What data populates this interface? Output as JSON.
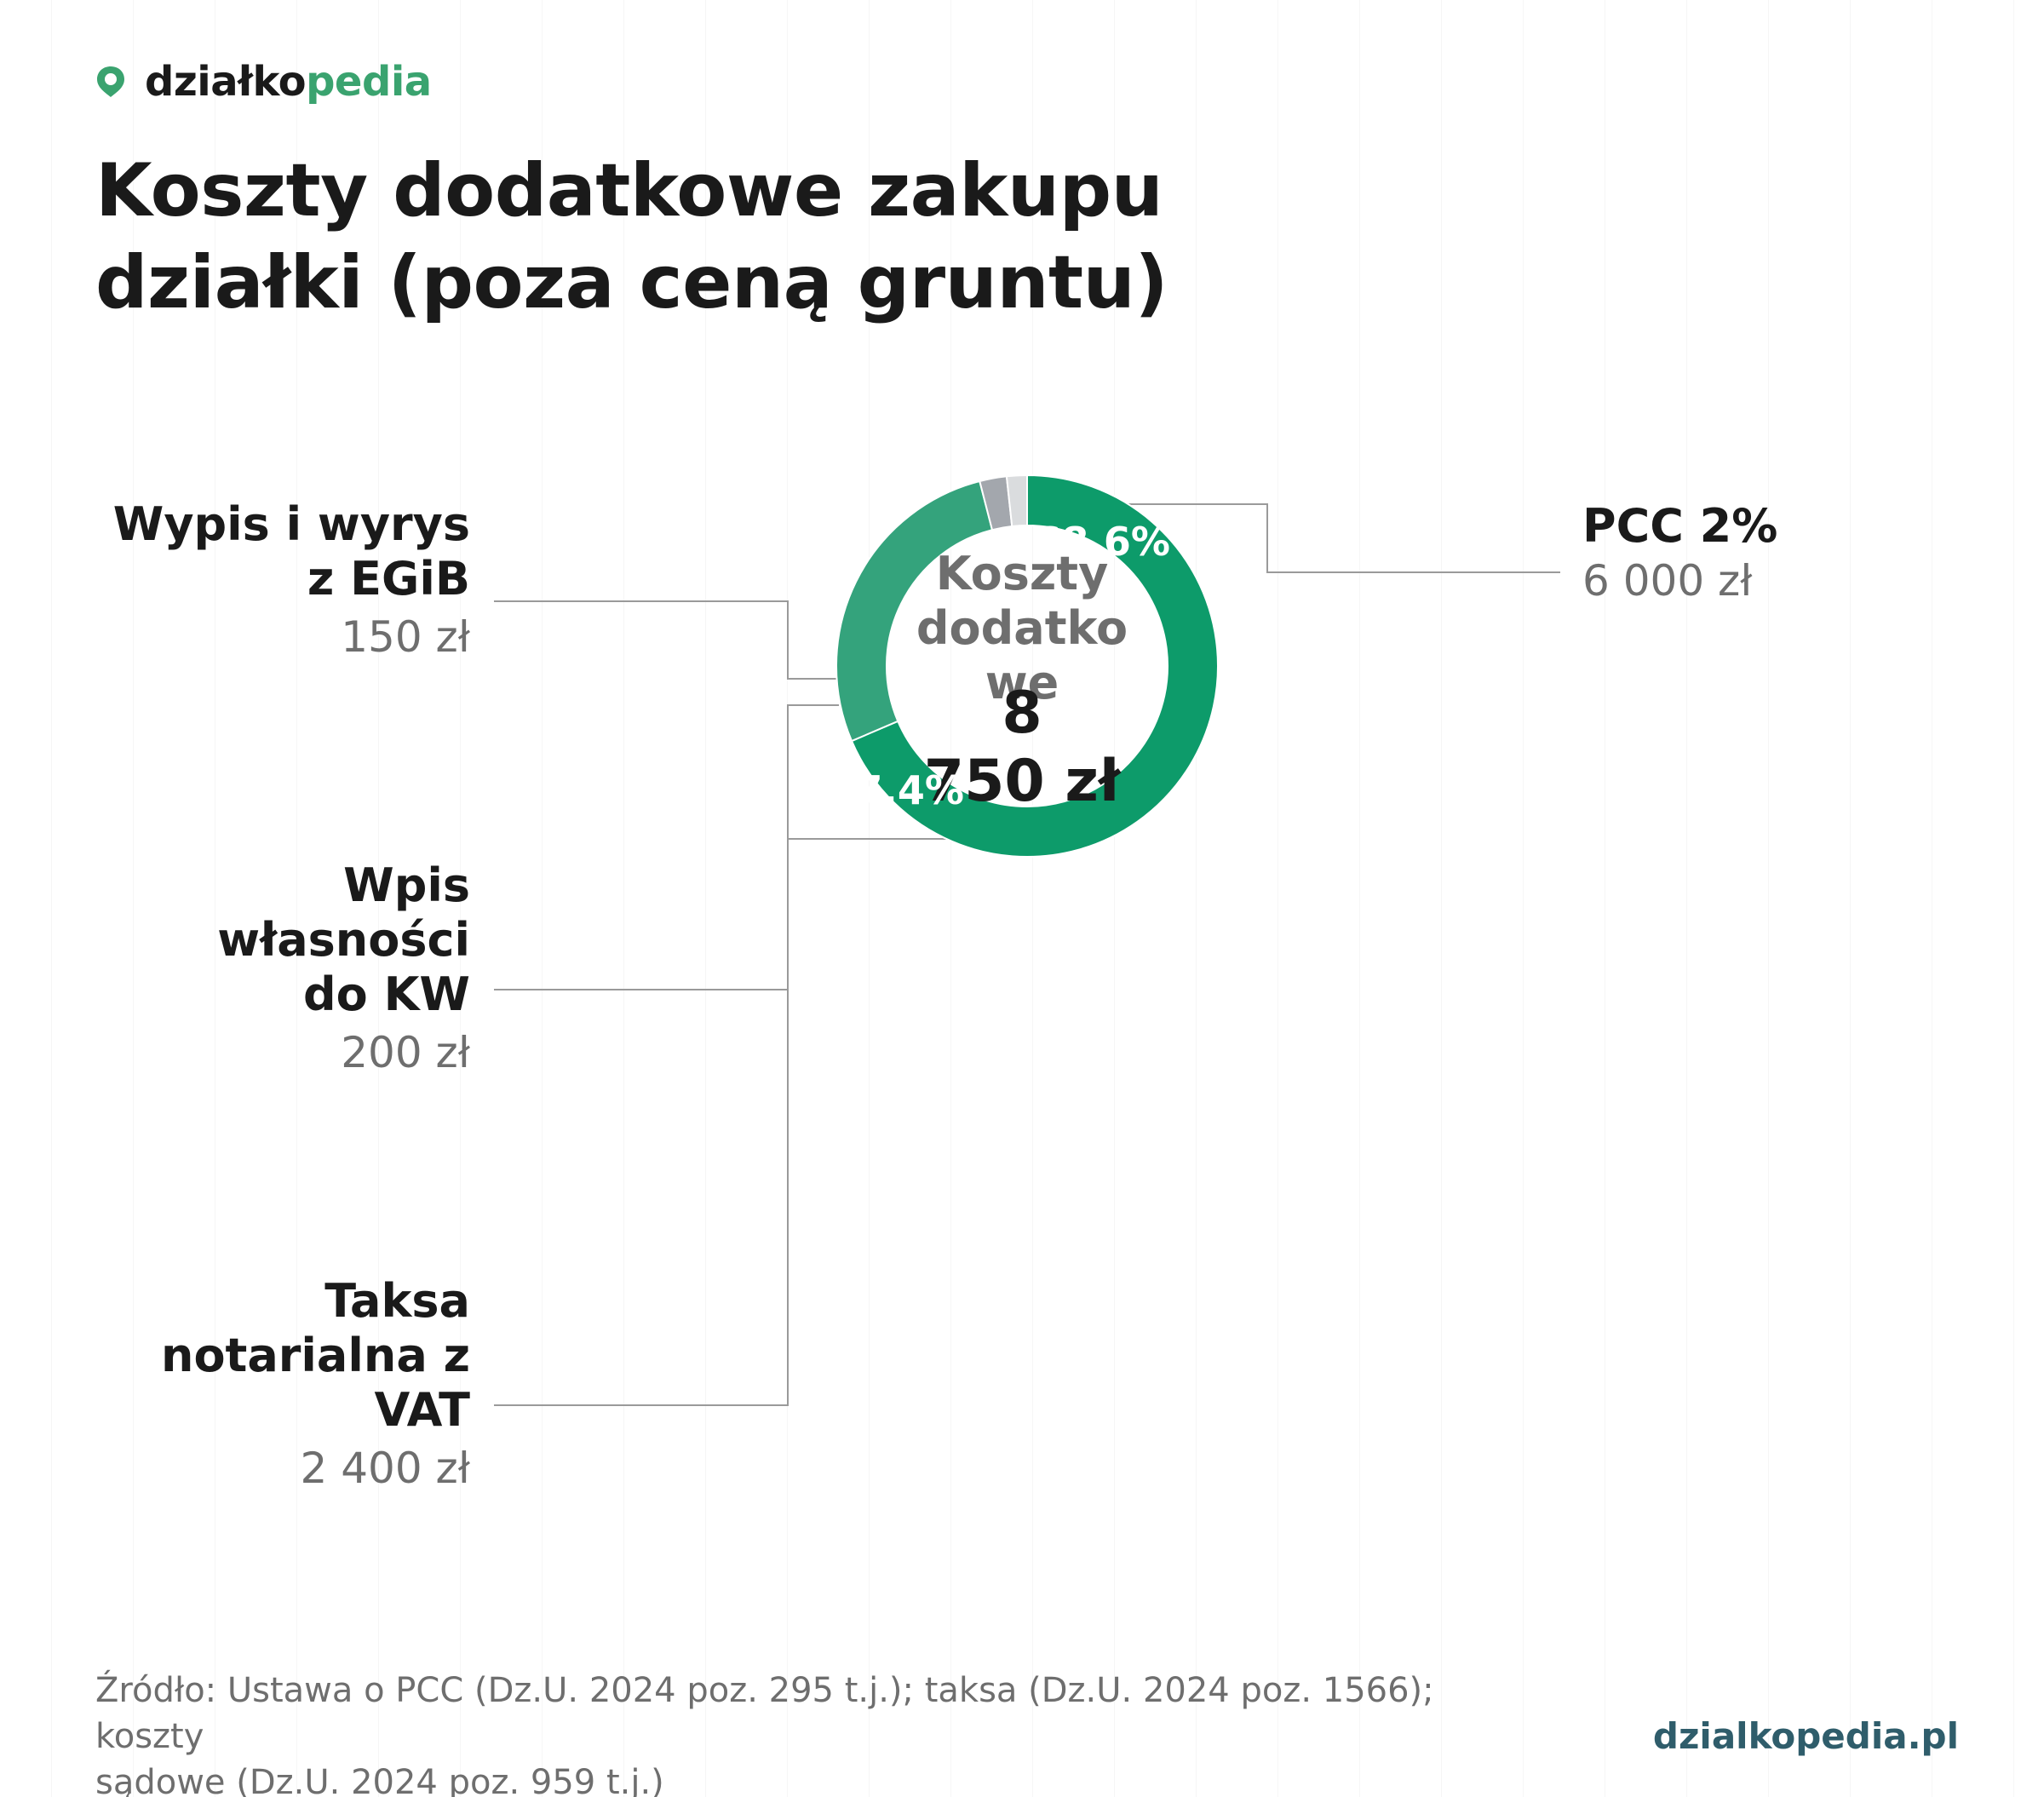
{
  "brand": {
    "name_part1": "działko",
    "name_part2": "pedia",
    "icon": "location-pin-icon",
    "color_accent": "#3aa36f"
  },
  "title_lines": [
    "Koszty dodatkowe zakupu",
    "działki (poza ceną gruntu)"
  ],
  "chart_data": {
    "type": "pie",
    "variant": "donut",
    "center_label_lines": [
      "Koszty",
      "dodatko",
      "we"
    ],
    "center_total_lines": [
      "8",
      "750 zł"
    ],
    "slices": [
      {
        "label_lines": [
          "PCC 2%"
        ],
        "value": 6000,
        "value_label": "6 000 zł",
        "percent_label": "68,6%",
        "color": "#0d9b6a",
        "side": "right"
      },
      {
        "label_lines": [
          "Taksa",
          "notarialna z",
          "VAT"
        ],
        "value": 2400,
        "value_label": "2 400 zł",
        "percent_label": "27,4%",
        "color": "#34a37c",
        "side": "left"
      },
      {
        "label_lines": [
          "Wpis",
          "własności",
          "do KW"
        ],
        "value": 200,
        "value_label": "200 zł",
        "percent_label": "",
        "color": "#a3a7ad",
        "side": "left"
      },
      {
        "label_lines": [
          "Wypis i wyrys",
          "z EGiB"
        ],
        "value": 150,
        "value_label": "150 zł",
        "percent_label": "",
        "color": "#dadcde",
        "side": "left"
      }
    ]
  },
  "source_lines": [
    "Źródło: Ustawa o PCC (Dz.U. 2024 poz. 295 t.j.); taksa (Dz.U. 2024 poz. 1566); koszty",
    "sądowe (Dz.U. 2024 poz. 959 t.j.)"
  ],
  "site": "dzialkopedia.pl"
}
